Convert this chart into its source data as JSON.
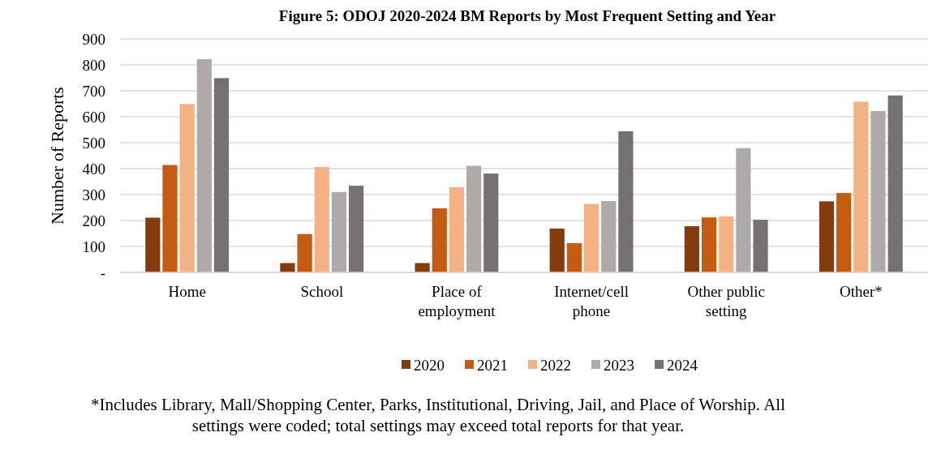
{
  "chart_data": {
    "type": "bar",
    "title": "Figure 5: ODOJ 2020-2024 BM Reports by Most Frequent Setting and Year",
    "ylabel": "Number of Reports",
    "categories": [
      "Home",
      "School",
      "Place of employment",
      "Internet/cell phone",
      "Other public setting",
      "Other*"
    ],
    "series": [
      {
        "name": "2020",
        "color": "#843c0c",
        "values": [
          211,
          36,
          36,
          169,
          178,
          274
        ]
      },
      {
        "name": "2021",
        "color": "#c55a11",
        "values": [
          414,
          148,
          247,
          113,
          212,
          306
        ]
      },
      {
        "name": "2022",
        "color": "#f4b183",
        "values": [
          649,
          406,
          328,
          264,
          216,
          658
        ]
      },
      {
        "name": "2023",
        "color": "#aeaaaa",
        "values": [
          822,
          310,
          411,
          275,
          479,
          622
        ]
      },
      {
        "name": "2024",
        "color": "#767171",
        "values": [
          749,
          334,
          381,
          544,
          203,
          682
        ]
      }
    ],
    "ylim": [
      0,
      900
    ],
    "yticks": [
      {
        "value": 0,
        "label": "-"
      },
      100,
      200,
      300,
      400,
      500,
      600,
      700,
      800,
      900
    ],
    "grid": "y",
    "legend": "bottom",
    "annotations": [
      "*Includes Library, Mall/Shopping Center, Parks, Institutional, Driving, Jail, and Place of Worship. All settings were coded; total settings may exceed total reports for that year."
    ]
  }
}
